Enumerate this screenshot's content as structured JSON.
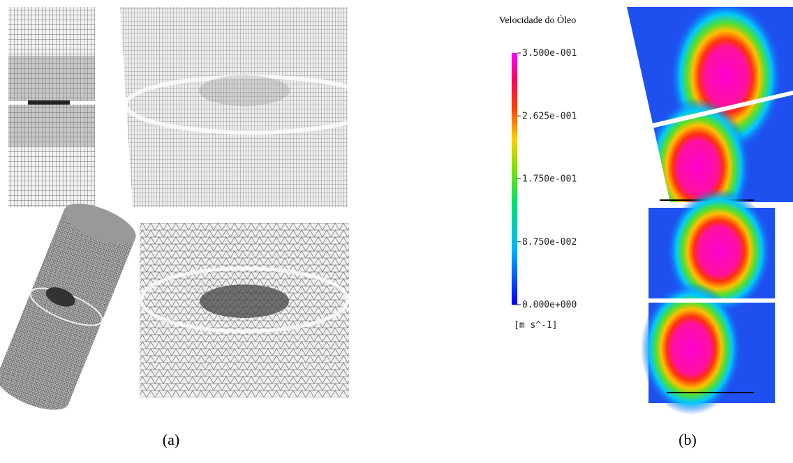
{
  "panels": [
    {
      "label": "(a)"
    },
    {
      "label": "(b)"
    }
  ],
  "colorbar": {
    "title": "Velocidade do Óleo",
    "ticks": [
      {
        "value": 0.35,
        "label": "3.500e-001"
      },
      {
        "value": 0.2625,
        "label": "2.625e-001"
      },
      {
        "value": 0.175,
        "label": "1.750e-001"
      },
      {
        "value": 0.0875,
        "label": "8.750e-002"
      },
      {
        "value": 0,
        "label": "0.000e+000"
      }
    ],
    "unit": "[m s^-1]"
  }
}
